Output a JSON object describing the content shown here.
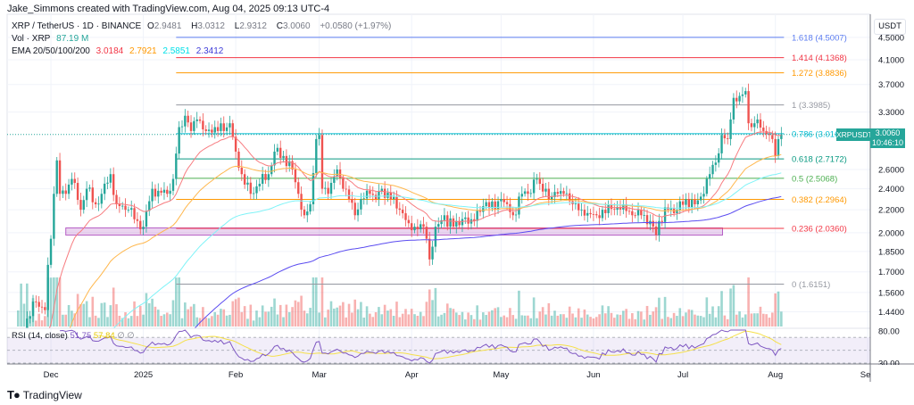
{
  "header": {
    "creator_line": "Jake_Simmons created with TradingView.com, Aug 04, 2025 09:13 UTC-4"
  },
  "legend": {
    "symbol": "XRP / TetherUS · 1D · BINANCE",
    "o_label": "O",
    "o": "2.9481",
    "h_label": "H",
    "h": "3.0312",
    "l_label": "L",
    "l": "2.9312",
    "c_label": "C",
    "c": "3.0060",
    "change": "+0.0580 (+1.97%)",
    "vol_label": "Vol · XRP",
    "vol": "87.19 M",
    "ema_label": "EMA 20/50/100/200",
    "ema20": "3.0184",
    "ema50": "2.7921",
    "ema100": "2.5851",
    "ema200": "2.3412"
  },
  "rsi_legend": {
    "label": "RSI (14, close)",
    "rsi": "51.75",
    "ma": "57.84"
  },
  "axis": {
    "currency": "USDT",
    "price_ticks": [
      "4.5000",
      "4.1000",
      "3.7000",
      "3.3000",
      "2.6000",
      "2.4000",
      "2.2000",
      "2.0000",
      "1.8500",
      "1.7000",
      "1.5600",
      "1.4400"
    ],
    "rsi_ticks": [
      "80.00",
      "30.00"
    ],
    "symbol_label": "XRPUSDT",
    "last_price": "3.0060",
    "countdown": "10:46:10"
  },
  "brand": {
    "name": "TradingView"
  },
  "colors": {
    "up": "#26a69a",
    "down": "#ef5350",
    "ema20": "#f77c80",
    "ema50": "#ffb74d",
    "ema100": "#7ff3f7",
    "ema200": "#5b4cf0",
    "rsi": "#7e57c2",
    "rsi_ma": "#f5e04a",
    "zone": "#9c27b0"
  },
  "chart_data": {
    "type": "candlestick",
    "title": "XRP / TetherUS · 1D · BINANCE",
    "yscale": "log",
    "start_date": "2024-11-20",
    "x_labels": [
      {
        "label": "Dec",
        "day": 11
      },
      {
        "label": "2025",
        "day": 42
      },
      {
        "label": "Feb",
        "day": 73
      },
      {
        "label": "Mar",
        "day": 101
      },
      {
        "label": "Apr",
        "day": 132
      },
      {
        "label": "May",
        "day": 162
      },
      {
        "label": "Jun",
        "day": 193
      },
      {
        "label": "Jul",
        "day": 223
      },
      {
        "label": "Aug",
        "day": 254
      },
      {
        "label": "Sep",
        "day": 285
      }
    ],
    "close_anchors": [
      [
        0,
        1.1
      ],
      [
        3,
        1.4
      ],
      [
        6,
        1.5
      ],
      [
        9,
        1.45
      ],
      [
        10,
        1.75
      ],
      [
        11,
        1.95
      ],
      [
        12,
        2.35
      ],
      [
        13,
        2.7
      ],
      [
        14,
        2.35
      ],
      [
        16,
        2.35
      ],
      [
        18,
        2.5
      ],
      [
        21,
        2.2
      ],
      [
        23,
        2.4
      ],
      [
        26,
        2.25
      ],
      [
        28,
        2.35
      ],
      [
        31,
        2.55
      ],
      [
        33,
        2.25
      ],
      [
        37,
        2.2
      ],
      [
        40,
        2.1
      ],
      [
        42,
        2.05
      ],
      [
        45,
        2.4
      ],
      [
        47,
        2.38
      ],
      [
        50,
        2.35
      ],
      [
        52,
        2.5
      ],
      [
        54,
        3.1
      ],
      [
        56,
        3.25
      ],
      [
        58,
        3.05
      ],
      [
        60,
        3.2
      ],
      [
        63,
        3.05
      ],
      [
        66,
        3.1
      ],
      [
        69,
        3.05
      ],
      [
        71,
        3.15
      ],
      [
        73,
        2.8
      ],
      [
        75,
        2.55
      ],
      [
        78,
        2.35
      ],
      [
        81,
        2.45
      ],
      [
        84,
        2.55
      ],
      [
        86,
        2.8
      ],
      [
        89,
        2.75
      ],
      [
        92,
        2.6
      ],
      [
        94,
        2.35
      ],
      [
        96,
        2.15
      ],
      [
        98,
        2.25
      ],
      [
        100,
        2.95
      ],
      [
        101,
        3.0
      ],
      [
        102,
        2.4
      ],
      [
        104,
        2.35
      ],
      [
        107,
        2.6
      ],
      [
        109,
        2.4
      ],
      [
        111,
        2.3
      ],
      [
        113,
        2.15
      ],
      [
        115,
        2.3
      ],
      [
        118,
        2.35
      ],
      [
        120,
        2.3
      ],
      [
        122,
        2.4
      ],
      [
        125,
        2.3
      ],
      [
        128,
        2.2
      ],
      [
        131,
        2.08
      ],
      [
        133,
        2.05
      ],
      [
        136,
        2.05
      ],
      [
        137,
        1.95
      ],
      [
        138,
        1.79
      ],
      [
        140,
        2.05
      ],
      [
        143,
        2.15
      ],
      [
        144,
        2.05
      ],
      [
        147,
        2.1
      ],
      [
        153,
        2.1
      ],
      [
        157,
        2.27
      ],
      [
        160,
        2.2
      ],
      [
        162,
        2.3
      ],
      [
        166,
        2.15
      ],
      [
        169,
        2.35
      ],
      [
        171,
        2.35
      ],
      [
        174,
        2.5
      ],
      [
        175,
        2.45
      ],
      [
        177,
        2.4
      ],
      [
        178,
        2.3
      ],
      [
        181,
        2.35
      ],
      [
        183,
        2.35
      ],
      [
        186,
        2.25
      ],
      [
        189,
        2.2
      ],
      [
        192,
        2.16
      ],
      [
        194,
        2.15
      ],
      [
        196,
        2.2
      ],
      [
        200,
        2.2
      ],
      [
        203,
        2.25
      ],
      [
        206,
        2.15
      ],
      [
        209,
        2.15
      ],
      [
        212,
        2.1
      ],
      [
        214,
        1.98
      ],
      [
        215,
        2.1
      ],
      [
        218,
        2.2
      ],
      [
        221,
        2.2
      ],
      [
        224,
        2.3
      ],
      [
        227,
        2.25
      ],
      [
        230,
        2.35
      ],
      [
        232,
        2.55
      ],
      [
        233,
        2.65
      ],
      [
        235,
        2.78
      ],
      [
        236,
        3.0
      ],
      [
        238,
        2.95
      ],
      [
        239,
        3.2
      ],
      [
        240,
        3.5
      ],
      [
        241,
        3.45
      ],
      [
        243,
        3.55
      ],
      [
        244,
        3.6
      ],
      [
        245,
        3.15
      ],
      [
        246,
        3.1
      ],
      [
        247,
        3.15
      ],
      [
        248,
        3.2
      ],
      [
        250,
        3.05
      ],
      [
        252,
        3.0
      ],
      [
        253,
        2.95
      ],
      [
        254,
        2.75
      ],
      [
        255,
        2.95
      ],
      [
        256,
        3.006
      ]
    ],
    "ema_periods": [
      20,
      50,
      100,
      200
    ],
    "ema_seed": [
      1.0,
      0.75,
      0.62,
      0.55
    ],
    "rsi_period": 14,
    "fib_levels": [
      {
        "ratio": "1.618",
        "price": 4.5007,
        "label": "1.618 (4.5007)",
        "color": "#5b7cf0"
      },
      {
        "ratio": "1.414",
        "price": 4.1368,
        "label": "1.414 (4.1368)",
        "color": "#f23645"
      },
      {
        "ratio": "1.272",
        "price": 3.8836,
        "label": "1.272 (3.8836)",
        "color": "#ff9800"
      },
      {
        "ratio": "1",
        "price": 3.3985,
        "label": "1 (3.3985)",
        "color": "#9598a1"
      },
      {
        "ratio": "0.786",
        "price": 3.0169,
        "label": "0.786 (3.0169)",
        "color": "#00bcd4"
      },
      {
        "ratio": "0.618",
        "price": 2.7172,
        "label": "0.618 (2.7172)",
        "color": "#089981"
      },
      {
        "ratio": "0.5",
        "price": 2.5068,
        "label": "0.5 (2.5068)",
        "color": "#4caf50"
      },
      {
        "ratio": "0.382",
        "price": 2.2964,
        "label": "0.382 (2.2964)",
        "color": "#ff9800"
      },
      {
        "ratio": "0.236",
        "price": 2.036,
        "label": "0.236 (2.0360)",
        "color": "#f23645"
      },
      {
        "ratio": "0",
        "price": 1.6151,
        "label": "0 (1.6151)",
        "color": "#9598a1"
      }
    ],
    "fib_start_day": 53,
    "support_zone": {
      "price_low": 1.98,
      "price_high": 2.04,
      "start_day": 10,
      "end_day": 230
    }
  }
}
